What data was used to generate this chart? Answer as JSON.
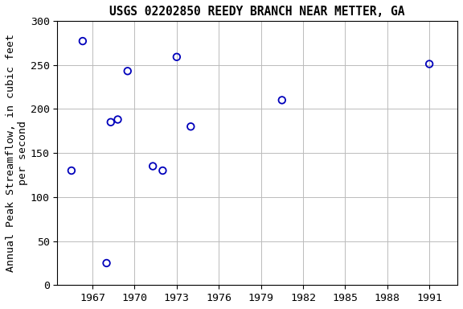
{
  "title": "USGS 02202850 REEDY BRANCH NEAR METTER, GA",
  "ylabel_line1": "Annual Peak Streamflow, in cubic feet",
  "ylabel_line2": "per second",
  "x_pts": [
    1965.5,
    1966.3,
    1968.3,
    1968.8,
    1969.5,
    1968.0,
    1971.3,
    1972.0,
    1973.0,
    1974.0,
    1980.5,
    1991.0
  ],
  "y_pts": [
    130,
    277,
    185,
    188,
    243,
    25,
    135,
    130,
    259,
    180,
    210,
    251
  ],
  "xlim": [
    1964.5,
    1993.0
  ],
  "ylim": [
    0,
    300
  ],
  "xticks": [
    1967,
    1970,
    1973,
    1976,
    1979,
    1982,
    1985,
    1988,
    1991
  ],
  "yticks": [
    0,
    50,
    100,
    150,
    200,
    250,
    300
  ],
  "marker_color": "#0000bb",
  "grid_color": "#bbbbbb",
  "bg_color": "#ffffff",
  "title_fontsize": 10.5,
  "label_fontsize": 9.5,
  "tick_fontsize": 9.5
}
